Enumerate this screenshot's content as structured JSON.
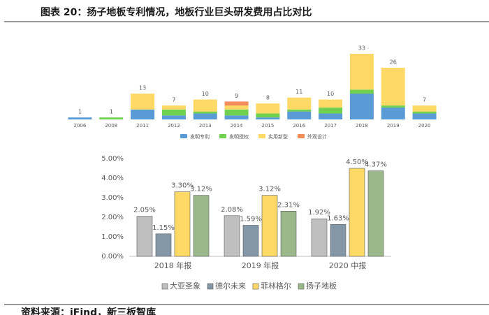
{
  "title": "图表 20：扬子地板专利情况，地板行业巨头研发费用占比对比",
  "source": "资料来源：iFind，新三板智库",
  "chart_data": [
    {
      "type": "stacked_bar",
      "categories": [
        "2006",
        "2008",
        "2011",
        "2012",
        "2013",
        "2014",
        "2015",
        "2016",
        "2017",
        "2018",
        "2019",
        "2020"
      ],
      "series": [
        {
          "name": "发明专利",
          "color": "#5b9bd5",
          "values": [
            1,
            0,
            5,
            2,
            3,
            2,
            1,
            4,
            3,
            13,
            6,
            3
          ]
        },
        {
          "name": "发明授权",
          "color": "#70d04f",
          "values": [
            0,
            1,
            0,
            3,
            1,
            3,
            2,
            1,
            3,
            2,
            1,
            1
          ]
        },
        {
          "name": "实用新型",
          "color": "#ffd966",
          "values": [
            0,
            0,
            8,
            2,
            6,
            2,
            5,
            6,
            4,
            18,
            19,
            3
          ]
        },
        {
          "name": "外观设计",
          "color": "#f08c5a",
          "values": [
            0,
            0,
            0,
            0,
            0,
            2,
            0,
            0,
            0,
            0,
            0,
            0
          ]
        }
      ],
      "totals": [
        1,
        1,
        13,
        7,
        10,
        9,
        8,
        11,
        10,
        33,
        26,
        7
      ]
    },
    {
      "type": "bar",
      "categories": [
        "2018 年报",
        "2019 年报",
        "2020 中报"
      ],
      "series": [
        {
          "name": "大亚圣象",
          "color": "#bfbfbf",
          "values": [
            2.05,
            2.08,
            1.92
          ],
          "value_labels": [
            "2.05%",
            "2.08%",
            "1.92%"
          ]
        },
        {
          "name": "德尔未来",
          "color": "#8497a8",
          "values": [
            1.15,
            1.59,
            1.63
          ],
          "value_labels": [
            "1.15%",
            "1.59%",
            "1.63%"
          ]
        },
        {
          "name": "菲林格尔",
          "color": "#ffd966",
          "values": [
            3.3,
            3.12,
            4.5
          ],
          "value_labels": [
            "3.30%",
            "3.12%",
            "4.50%"
          ]
        },
        {
          "name": "扬子地板",
          "color": "#9bb88a",
          "values": [
            3.12,
            2.31,
            4.37
          ],
          "value_labels": [
            "3.12%",
            "2.31%",
            "4.37%"
          ]
        }
      ],
      "ylim": [
        0,
        5
      ],
      "yticks": [
        {
          "value": 0,
          "label": "0.00%"
        },
        {
          "value": 1,
          "label": "1.00%"
        },
        {
          "value": 2,
          "label": "2.00%"
        },
        {
          "value": 3,
          "label": "3.00%"
        },
        {
          "value": 4,
          "label": "4.00%"
        },
        {
          "value": 5,
          "label": "5.00%"
        }
      ]
    }
  ]
}
